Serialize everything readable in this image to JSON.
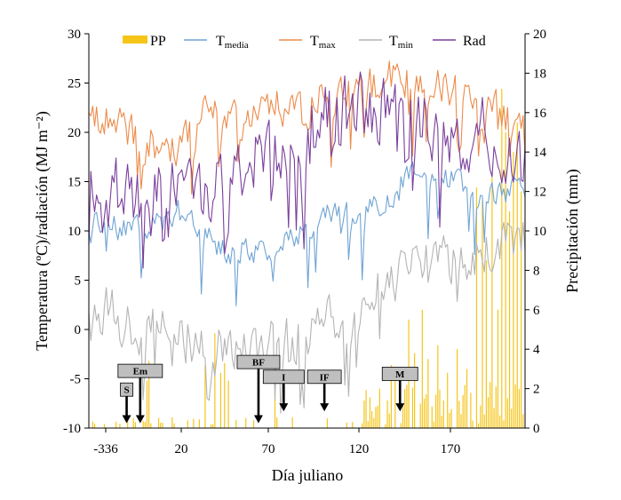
{
  "chart_data": {
    "type": "line",
    "xlabel": "Día juliano",
    "ylabel": "Temperatura (ºC)/radiación (MJ m⁻²)",
    "y2label": "Precipitación (mm)",
    "x_tick_labels": [
      "-336",
      "20",
      "70",
      "120",
      "170"
    ],
    "ylim": [
      -10,
      30
    ],
    "y2lim": [
      0,
      20
    ],
    "y_ticks": [
      -10,
      -5,
      0,
      5,
      10,
      15,
      20,
      25,
      30
    ],
    "y2_ticks": [
      0,
      2,
      4,
      6,
      8,
      10,
      12,
      14,
      16,
      18,
      20
    ],
    "n_days": 226,
    "legend": [
      {
        "key": "pp",
        "label": "PP",
        "sub": ""
      },
      {
        "key": "tmedia",
        "label": "T",
        "sub": "media"
      },
      {
        "key": "tmax",
        "label": "T",
        "sub": "max"
      },
      {
        "key": "tmin",
        "label": "T",
        "sub": "min"
      },
      {
        "key": "rad",
        "label": "Rad",
        "sub": ""
      }
    ],
    "colors": {
      "pp": "#f5c518",
      "tmedia": "#6fa4d4",
      "tmax": "#ec8b4a",
      "tmin": "#b4b4b4",
      "rad": "#7a3f9c"
    },
    "series_envelopes": {
      "tmedia": {
        "day": [
          0,
          20,
          35,
          50,
          70,
          90,
          110,
          130,
          150,
          170,
          190,
          200,
          225
        ],
        "value": [
          11,
          10,
          11,
          12,
          8,
          8,
          10,
          12,
          13,
          16,
          15,
          14,
          14
        ]
      },
      "tmax": {
        "day": [
          0,
          15,
          30,
          45,
          60,
          75,
          90,
          110,
          125,
          140,
          155,
          175,
          200,
          225
        ],
        "value": [
          22,
          21,
          19,
          18,
          22,
          21,
          23,
          22,
          24,
          24,
          26,
          25,
          23,
          21
        ]
      },
      "tmin": {
        "day": [
          0,
          15,
          30,
          45,
          60,
          75,
          90,
          110,
          125,
          145,
          170,
          190,
          210,
          225
        ],
        "value": [
          3,
          1,
          0,
          0,
          -2,
          -2,
          -2,
          -1,
          1,
          5,
          6,
          7,
          8,
          9
        ]
      },
      "rad": {
        "day": [
          0,
          20,
          40,
          60,
          80,
          100,
          120,
          140,
          160,
          180,
          200,
          225
        ],
        "value": [
          15,
          14,
          13,
          15,
          16,
          18,
          21,
          22,
          21,
          20,
          20,
          18
        ]
      }
    },
    "precipitation_events": [
      {
        "day": 30,
        "mm": 2.4
      },
      {
        "day": 31,
        "mm": 3.4
      },
      {
        "day": 60,
        "mm": 3.2
      },
      {
        "day": 65,
        "mm": 4.8
      },
      {
        "day": 68,
        "mm": 2.8
      },
      {
        "day": 70,
        "mm": 3.3
      },
      {
        "day": 72,
        "mm": 2.4
      },
      {
        "day": 96,
        "mm": 1.8
      },
      {
        "day": 142,
        "mm": 1.4
      },
      {
        "day": 150,
        "mm": 2.0
      },
      {
        "day": 156,
        "mm": 3.2
      },
      {
        "day": 158,
        "mm": 2.6
      },
      {
        "day": 165,
        "mm": 5.5
      },
      {
        "day": 168,
        "mm": 3.8
      },
      {
        "day": 172,
        "mm": 6.0
      },
      {
        "day": 175,
        "mm": 3.5
      },
      {
        "day": 180,
        "mm": 4.2
      },
      {
        "day": 185,
        "mm": 2.8
      },
      {
        "day": 190,
        "mm": 4.0
      },
      {
        "day": 195,
        "mm": 3.0
      },
      {
        "day": 200,
        "mm": 12.2
      },
      {
        "day": 203,
        "mm": 11.5
      },
      {
        "day": 205,
        "mm": 8.5
      },
      {
        "day": 208,
        "mm": 13.0
      },
      {
        "day": 211,
        "mm": 6.0
      },
      {
        "day": 213,
        "mm": 17.2
      },
      {
        "day": 215,
        "mm": 15.0
      },
      {
        "day": 217,
        "mm": 11.0
      },
      {
        "day": 219,
        "mm": 14.0
      },
      {
        "day": 221,
        "mm": 15.5
      },
      {
        "day": 223,
        "mm": 12.0
      }
    ],
    "stages": [
      {
        "label": "S",
        "day": 19.5,
        "box_level": -6.1,
        "arrow_to": -9.5,
        "width": 14
      },
      {
        "label": "Em",
        "day": 26.5,
        "box_level": -4.2,
        "arrow_to": -9.5,
        "width": 50
      },
      {
        "label": "BF",
        "day": 87.5,
        "box_level": -3.3,
        "arrow_to": -9.5,
        "width": 48
      },
      {
        "label": "I",
        "day": 100.5,
        "box_level": -4.8,
        "arrow_to": -8.3,
        "width": 46
      },
      {
        "label": "IF",
        "day": 121.5,
        "box_level": -4.8,
        "arrow_to": -8.3,
        "width": 38
      },
      {
        "label": "M",
        "day": 160.5,
        "box_level": -4.5,
        "arrow_to": -8.3,
        "width": 40
      }
    ]
  }
}
